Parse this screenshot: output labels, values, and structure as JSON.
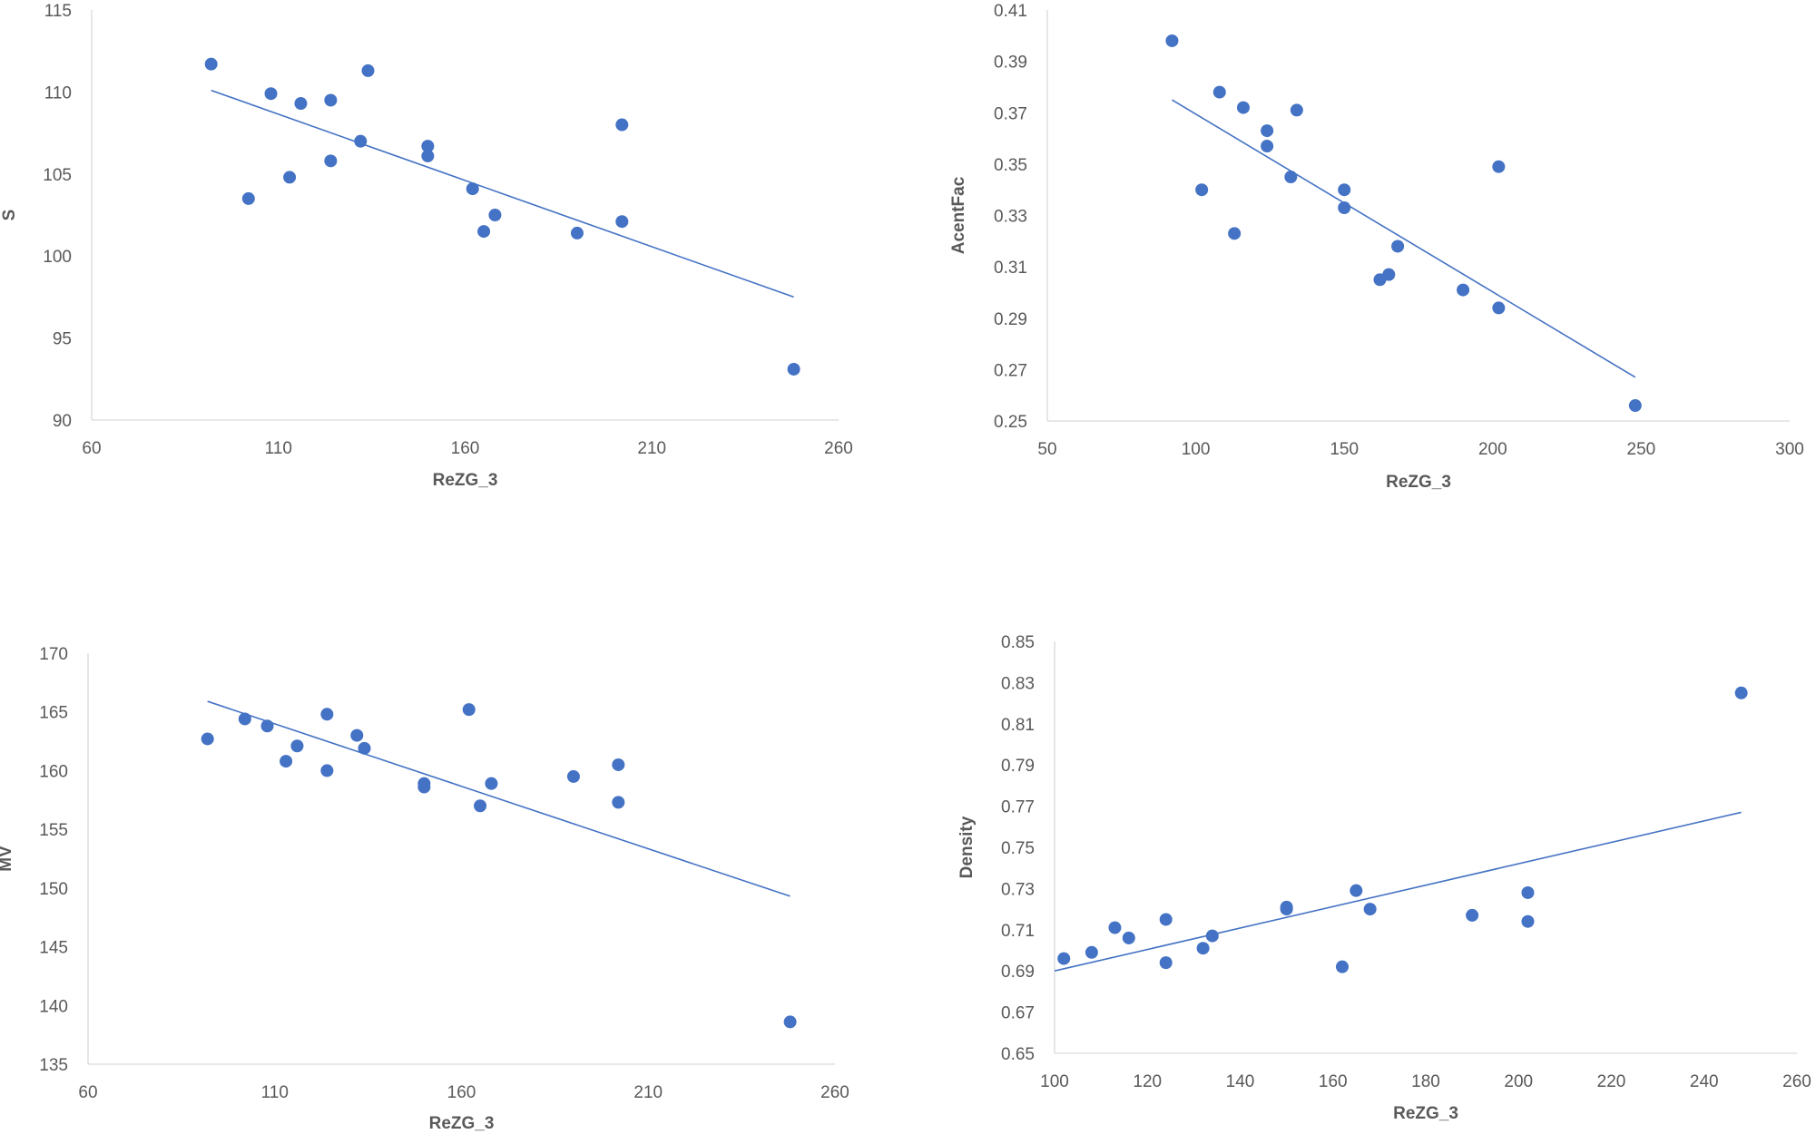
{
  "chart_data": [
    {
      "type": "scatter",
      "title": "",
      "xlabel": "ReZG_3",
      "ylabel": "S",
      "xlim": [
        60,
        260
      ],
      "ylim": [
        90,
        115
      ],
      "xticks": [
        "60",
        "110",
        "160",
        "210",
        "260"
      ],
      "yticks": [
        "90",
        "95",
        "100",
        "105",
        "110",
        "115"
      ],
      "grid": false,
      "trendline": {
        "x": [
          92,
          248
        ],
        "y": [
          110.1,
          97.5
        ]
      },
      "points": [
        {
          "x": 92,
          "y": 111.7
        },
        {
          "x": 102,
          "y": 103.5
        },
        {
          "x": 108,
          "y": 109.9
        },
        {
          "x": 113,
          "y": 104.8
        },
        {
          "x": 116,
          "y": 109.3
        },
        {
          "x": 124,
          "y": 109.5
        },
        {
          "x": 124,
          "y": 105.8
        },
        {
          "x": 132,
          "y": 107.0
        },
        {
          "x": 134,
          "y": 111.3
        },
        {
          "x": 150,
          "y": 106.7
        },
        {
          "x": 150,
          "y": 106.1
        },
        {
          "x": 162,
          "y": 104.1
        },
        {
          "x": 165,
          "y": 101.5
        },
        {
          "x": 168,
          "y": 102.5
        },
        {
          "x": 190,
          "y": 101.4
        },
        {
          "x": 202,
          "y": 108.0
        },
        {
          "x": 202,
          "y": 102.1
        },
        {
          "x": 248,
          "y": 93.1
        }
      ]
    },
    {
      "type": "scatter",
      "title": "",
      "xlabel": "ReZG_3",
      "ylabel": "AcentFac",
      "xlim": [
        50,
        300
      ],
      "ylim": [
        0.25,
        0.41
      ],
      "xticks": [
        "50",
        "100",
        "150",
        "200",
        "250",
        "300"
      ],
      "yticks": [
        "0.25",
        "0.27",
        "0.29",
        "0.31",
        "0.33",
        "0.35",
        "0.37",
        "0.39",
        "0.41"
      ],
      "grid": false,
      "trendline": {
        "x": [
          92,
          248
        ],
        "y": [
          0.375,
          0.267
        ]
      },
      "points": [
        {
          "x": 92,
          "y": 0.398
        },
        {
          "x": 102,
          "y": 0.34
        },
        {
          "x": 108,
          "y": 0.378
        },
        {
          "x": 113,
          "y": 0.323
        },
        {
          "x": 116,
          "y": 0.372
        },
        {
          "x": 124,
          "y": 0.363
        },
        {
          "x": 124,
          "y": 0.357
        },
        {
          "x": 132,
          "y": 0.345
        },
        {
          "x": 134,
          "y": 0.371
        },
        {
          "x": 150,
          "y": 0.34
        },
        {
          "x": 150,
          "y": 0.333
        },
        {
          "x": 162,
          "y": 0.305
        },
        {
          "x": 165,
          "y": 0.307
        },
        {
          "x": 168,
          "y": 0.318
        },
        {
          "x": 190,
          "y": 0.301
        },
        {
          "x": 202,
          "y": 0.349
        },
        {
          "x": 202,
          "y": 0.294
        },
        {
          "x": 248,
          "y": 0.256
        }
      ]
    },
    {
      "type": "scatter",
      "title": "",
      "xlabel": "ReZG_3",
      "ylabel": "MV",
      "xlim": [
        60,
        260
      ],
      "ylim": [
        135,
        170
      ],
      "xticks": [
        "60",
        "110",
        "160",
        "210",
        "260"
      ],
      "yticks": [
        "135",
        "140",
        "145",
        "150",
        "155",
        "160",
        "165",
        "170"
      ],
      "grid": false,
      "trendline": {
        "x": [
          92,
          248
        ],
        "y": [
          165.9,
          149.3
        ]
      },
      "points": [
        {
          "x": 92,
          "y": 162.7
        },
        {
          "x": 102,
          "y": 164.4
        },
        {
          "x": 108,
          "y": 163.8
        },
        {
          "x": 113,
          "y": 160.8
        },
        {
          "x": 116,
          "y": 162.1
        },
        {
          "x": 124,
          "y": 164.8
        },
        {
          "x": 124,
          "y": 160.0
        },
        {
          "x": 132,
          "y": 163.0
        },
        {
          "x": 134,
          "y": 161.9
        },
        {
          "x": 150,
          "y": 158.9
        },
        {
          "x": 150,
          "y": 158.6
        },
        {
          "x": 162,
          "y": 165.2
        },
        {
          "x": 165,
          "y": 157.0
        },
        {
          "x": 168,
          "y": 158.9
        },
        {
          "x": 190,
          "y": 159.5
        },
        {
          "x": 202,
          "y": 160.5
        },
        {
          "x": 202,
          "y": 157.3
        },
        {
          "x": 248,
          "y": 138.6
        }
      ]
    },
    {
      "type": "scatter",
      "title": "",
      "xlabel": "ReZG_3",
      "ylabel": "Density",
      "xlim": [
        100,
        260
      ],
      "ylim": [
        0.65,
        0.85
      ],
      "xticks": [
        "100",
        "120",
        "140",
        "160",
        "180",
        "200",
        "220",
        "240",
        "260"
      ],
      "yticks": [
        "0.65",
        "0.67",
        "0.69",
        "0.71",
        "0.73",
        "0.75",
        "0.77",
        "0.79",
        "0.81",
        "0.83",
        "0.85"
      ],
      "grid": false,
      "trendline": {
        "x": [
          100,
          248
        ],
        "y": [
          0.69,
          0.767
        ]
      },
      "points": [
        {
          "x": 102,
          "y": 0.696
        },
        {
          "x": 108,
          "y": 0.699
        },
        {
          "x": 113,
          "y": 0.711
        },
        {
          "x": 116,
          "y": 0.706
        },
        {
          "x": 124,
          "y": 0.715
        },
        {
          "x": 124,
          "y": 0.694
        },
        {
          "x": 132,
          "y": 0.701
        },
        {
          "x": 134,
          "y": 0.707
        },
        {
          "x": 150,
          "y": 0.721
        },
        {
          "x": 150,
          "y": 0.72
        },
        {
          "x": 162,
          "y": 0.692
        },
        {
          "x": 165,
          "y": 0.729
        },
        {
          "x": 168,
          "y": 0.72
        },
        {
          "x": 190,
          "y": 0.717
        },
        {
          "x": 202,
          "y": 0.728
        },
        {
          "x": 202,
          "y": 0.714
        },
        {
          "x": 248,
          "y": 0.825
        }
      ]
    }
  ]
}
